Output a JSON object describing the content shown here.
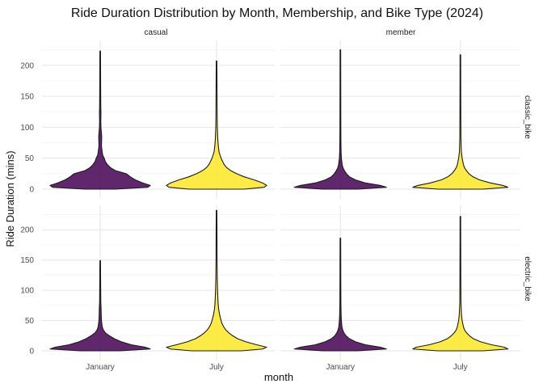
{
  "chart_data": {
    "type": "violin",
    "title": "Ride Duration Distribution by Month, Membership, and Bike Type (2024)",
    "xlabel": "month",
    "ylabel": "Ride Duration (mins)",
    "categories": [
      "January",
      "July"
    ],
    "column_facets": [
      "casual",
      "member"
    ],
    "row_facets": [
      "classic_bike",
      "electric_bike"
    ],
    "ylim": [
      0,
      235
    ],
    "yticks": [
      0,
      50,
      100,
      150,
      200
    ],
    "grid": true,
    "colors": {
      "January": "#440154",
      "July": "#fde725",
      "outline": "#1a1a1a"
    },
    "panels": [
      {
        "membership": "casual",
        "bike": "classic_bike",
        "violins": [
          {
            "month": "January",
            "max": 223,
            "profile": [
              [
                0,
                0.3
              ],
              [
                3,
                0.95
              ],
              [
                6,
                1.0
              ],
              [
                10,
                0.85
              ],
              [
                15,
                0.7
              ],
              [
                20,
                0.6
              ],
              [
                25,
                0.52
              ],
              [
                30,
                0.3
              ],
              [
                35,
                0.2
              ],
              [
                40,
                0.14
              ],
              [
                45,
                0.1
              ],
              [
                50,
                0.08
              ],
              [
                55,
                0.05
              ],
              [
                60,
                0.04
              ],
              [
                70,
                0.025
              ],
              [
                85,
                0.03
              ],
              [
                90,
                0.025
              ],
              [
                95,
                0.02
              ],
              [
                100,
                0.015
              ],
              [
                110,
                0.012
              ],
              [
                125,
                0.015
              ],
              [
                130,
                0.012
              ],
              [
                150,
                0.01
              ],
              [
                180,
                0.008
              ],
              [
                223,
                0.006
              ]
            ]
          },
          {
            "month": "July",
            "max": 207,
            "profile": [
              [
                0,
                0.55
              ],
              [
                3,
                0.95
              ],
              [
                6,
                1.0
              ],
              [
                10,
                0.92
              ],
              [
                15,
                0.75
              ],
              [
                20,
                0.55
              ],
              [
                25,
                0.4
              ],
              [
                30,
                0.28
              ],
              [
                35,
                0.2
              ],
              [
                40,
                0.15
              ],
              [
                45,
                0.12
              ],
              [
                50,
                0.09
              ],
              [
                55,
                0.07
              ],
              [
                60,
                0.05
              ],
              [
                70,
                0.035
              ],
              [
                80,
                0.025
              ],
              [
                100,
                0.015
              ],
              [
                120,
                0.012
              ],
              [
                150,
                0.01
              ],
              [
                180,
                0.008
              ],
              [
                207,
                0.006
              ]
            ]
          }
        ]
      },
      {
        "membership": "member",
        "bike": "classic_bike",
        "violins": [
          {
            "month": "January",
            "max": 225,
            "profile": [
              [
                0,
                0.35
              ],
              [
                3,
                0.92
              ],
              [
                6,
                0.8
              ],
              [
                10,
                0.5
              ],
              [
                15,
                0.3
              ],
              [
                20,
                0.18
              ],
              [
                25,
                0.12
              ],
              [
                30,
                0.08
              ],
              [
                35,
                0.05
              ],
              [
                40,
                0.035
              ],
              [
                50,
                0.02
              ],
              [
                60,
                0.014
              ],
              [
                80,
                0.01
              ],
              [
                120,
                0.008
              ],
              [
                180,
                0.007
              ],
              [
                225,
                0.006
              ]
            ]
          },
          {
            "month": "July",
            "max": 217,
            "profile": [
              [
                0,
                0.45
              ],
              [
                3,
                0.95
              ],
              [
                6,
                0.85
              ],
              [
                10,
                0.6
              ],
              [
                15,
                0.38
              ],
              [
                20,
                0.25
              ],
              [
                25,
                0.17
              ],
              [
                30,
                0.12
              ],
              [
                35,
                0.08
              ],
              [
                40,
                0.06
              ],
              [
                50,
                0.035
              ],
              [
                60,
                0.02
              ],
              [
                80,
                0.012
              ],
              [
                120,
                0.009
              ],
              [
                180,
                0.007
              ],
              [
                217,
                0.006
              ]
            ]
          }
        ]
      },
      {
        "membership": "casual",
        "bike": "electric_bike",
        "violins": [
          {
            "month": "January",
            "max": 149,
            "profile": [
              [
                0,
                0.4
              ],
              [
                3,
                1.0
              ],
              [
                6,
                0.9
              ],
              [
                10,
                0.62
              ],
              [
                15,
                0.42
              ],
              [
                20,
                0.28
              ],
              [
                25,
                0.18
              ],
              [
                30,
                0.1
              ],
              [
                35,
                0.06
              ],
              [
                40,
                0.04
              ],
              [
                50,
                0.025
              ],
              [
                60,
                0.02
              ],
              [
                70,
                0.018
              ],
              [
                80,
                0.012
              ],
              [
                100,
                0.01
              ],
              [
                120,
                0.008
              ],
              [
                149,
                0.006
              ]
            ]
          },
          {
            "month": "July",
            "max": 232,
            "profile": [
              [
                0,
                0.5
              ],
              [
                3,
                0.92
              ],
              [
                6,
                1.0
              ],
              [
                10,
                0.8
              ],
              [
                15,
                0.58
              ],
              [
                20,
                0.42
              ],
              [
                25,
                0.32
              ],
              [
                30,
                0.24
              ],
              [
                35,
                0.18
              ],
              [
                40,
                0.14
              ],
              [
                45,
                0.11
              ],
              [
                50,
                0.09
              ],
              [
                60,
                0.06
              ],
              [
                70,
                0.04
              ],
              [
                80,
                0.03
              ],
              [
                100,
                0.02
              ],
              [
                120,
                0.014
              ],
              [
                150,
                0.01
              ],
              [
                200,
                0.008
              ],
              [
                232,
                0.006
              ]
            ]
          }
        ]
      },
      {
        "membership": "member",
        "bike": "electric_bike",
        "violins": [
          {
            "month": "January",
            "max": 186,
            "profile": [
              [
                0,
                0.35
              ],
              [
                3,
                0.92
              ],
              [
                6,
                0.8
              ],
              [
                10,
                0.5
              ],
              [
                15,
                0.3
              ],
              [
                20,
                0.18
              ],
              [
                25,
                0.11
              ],
              [
                30,
                0.07
              ],
              [
                35,
                0.045
              ],
              [
                40,
                0.03
              ],
              [
                50,
                0.02
              ],
              [
                60,
                0.014
              ],
              [
                80,
                0.01
              ],
              [
                120,
                0.008
              ],
              [
                186,
                0.006
              ]
            ]
          },
          {
            "month": "July",
            "max": 222,
            "profile": [
              [
                0,
                0.45
              ],
              [
                3,
                0.95
              ],
              [
                6,
                0.88
              ],
              [
                10,
                0.62
              ],
              [
                15,
                0.4
              ],
              [
                20,
                0.26
              ],
              [
                25,
                0.18
              ],
              [
                30,
                0.12
              ],
              [
                35,
                0.08
              ],
              [
                40,
                0.06
              ],
              [
                50,
                0.035
              ],
              [
                60,
                0.022
              ],
              [
                80,
                0.012
              ],
              [
                120,
                0.009
              ],
              [
                180,
                0.007
              ],
              [
                222,
                0.006
              ]
            ]
          }
        ]
      }
    ]
  }
}
